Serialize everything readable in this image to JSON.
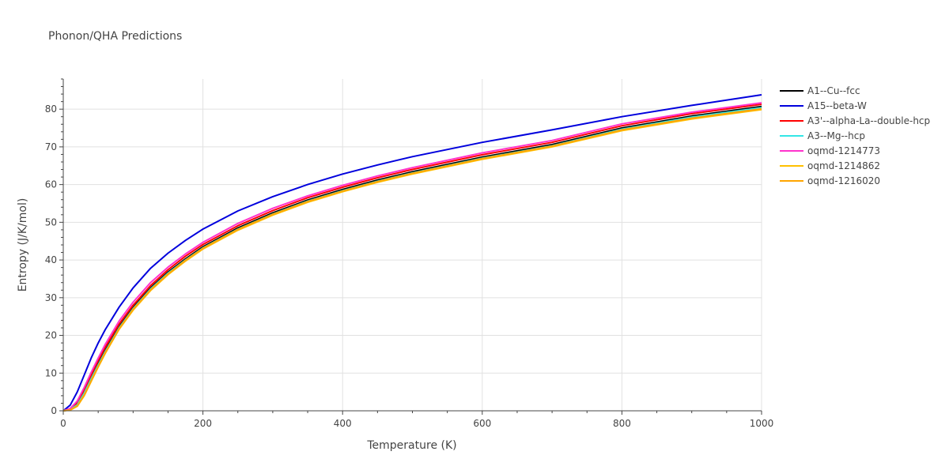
{
  "chart_data": {
    "type": "line",
    "title": "Phonon/QHA Predictions",
    "xlabel": "Temperature (K)",
    "ylabel": "Entropy (J/K/mol)",
    "xlim": [
      0,
      1000
    ],
    "ylim": [
      0,
      88
    ],
    "xticks": [
      0,
      200,
      400,
      600,
      800,
      1000
    ],
    "yticks": [
      0,
      10,
      20,
      30,
      40,
      50,
      60,
      70,
      80
    ],
    "grid": true,
    "legend_position": "right",
    "x": [
      0,
      10,
      20,
      30,
      40,
      50,
      60,
      80,
      100,
      125,
      150,
      175,
      200,
      250,
      300,
      350,
      400,
      450,
      500,
      600,
      700,
      800,
      900,
      1000
    ],
    "series": [
      {
        "name": "A1--Cu--fcc",
        "color": "#000000",
        "values": [
          0,
          0.4,
          1.8,
          5.0,
          8.8,
          12.5,
          16.0,
          22.3,
          27.4,
          32.6,
          36.8,
          40.3,
          43.5,
          48.5,
          52.5,
          55.9,
          58.7,
          61.2,
          63.4,
          67.3,
          70.6,
          75.0,
          78.2,
          80.7
        ]
      },
      {
        "name": "A15--beta-W",
        "color": "#0000dd",
        "values": [
          0,
          1.5,
          5.0,
          9.5,
          14.0,
          18.0,
          21.5,
          27.5,
          32.6,
          37.8,
          41.8,
          45.2,
          48.2,
          53.0,
          56.8,
          60.0,
          62.8,
          65.2,
          67.4,
          71.2,
          74.5,
          78.0,
          81.0,
          83.8
        ]
      },
      {
        "name": "A3'--alpha-La--double-hcp",
        "color": "#ff0000",
        "values": [
          0,
          0.5,
          2.2,
          5.6,
          9.5,
          13.3,
          16.8,
          23.0,
          28.0,
          33.2,
          37.4,
          41.0,
          44.1,
          49.1,
          53.1,
          56.5,
          59.3,
          61.8,
          64.0,
          67.9,
          71.2,
          75.6,
          78.8,
          81.3
        ]
      },
      {
        "name": "A3--Mg--hcp",
        "color": "#33e6e6",
        "values": [
          0,
          0.3,
          1.6,
          4.7,
          8.5,
          12.2,
          15.7,
          22.0,
          27.1,
          32.3,
          36.5,
          40.0,
          43.2,
          48.2,
          52.2,
          55.6,
          58.4,
          60.9,
          63.1,
          67.0,
          70.3,
          74.7,
          77.9,
          80.4
        ]
      },
      {
        "name": "oqmd-1214773",
        "color": "#ff33cc",
        "values": [
          0,
          0.6,
          2.6,
          6.2,
          10.2,
          14.0,
          17.6,
          23.8,
          28.8,
          34.0,
          38.1,
          41.6,
          44.7,
          49.7,
          53.7,
          57.0,
          59.8,
          62.3,
          64.5,
          68.4,
          71.7,
          76.1,
          79.2,
          81.7
        ]
      },
      {
        "name": "oqmd-1214862",
        "color": "#ffc000",
        "values": [
          0,
          0.2,
          1.2,
          4.0,
          7.8,
          11.6,
          15.2,
          21.6,
          26.7,
          31.9,
          36.1,
          39.7,
          42.9,
          47.9,
          51.9,
          55.3,
          58.1,
          60.6,
          62.8,
          66.7,
          70.0,
          74.3,
          77.4,
          79.9
        ]
      },
      {
        "name": "oqmd-1216020",
        "color": "#ffa500",
        "values": [
          0,
          0.2,
          1.3,
          4.2,
          8.0,
          11.8,
          15.4,
          21.8,
          26.9,
          32.1,
          36.3,
          39.9,
          43.1,
          48.1,
          52.1,
          55.5,
          58.3,
          60.8,
          63.0,
          66.9,
          70.2,
          74.5,
          77.6,
          80.1
        ]
      }
    ]
  }
}
